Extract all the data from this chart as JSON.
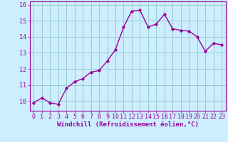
{
  "x": [
    0,
    1,
    2,
    3,
    4,
    5,
    6,
    7,
    8,
    9,
    10,
    11,
    12,
    13,
    14,
    15,
    16,
    17,
    18,
    19,
    20,
    21,
    22,
    23
  ],
  "y": [
    9.9,
    10.2,
    9.9,
    9.8,
    10.8,
    11.2,
    11.4,
    11.8,
    11.9,
    12.5,
    13.2,
    14.6,
    15.6,
    15.65,
    14.6,
    14.8,
    15.4,
    14.5,
    14.4,
    14.35,
    14.0,
    13.1,
    13.6,
    13.5
  ],
  "line_color": "#990099",
  "marker": "o",
  "markersize": 2.5,
  "linewidth": 1.0,
  "bg_color": "#cceeff",
  "grid_color": "#99cccc",
  "xlabel": "Windchill (Refroidissement éolien,°C)",
  "xlabel_color": "#990099",
  "tick_color": "#990099",
  "xlim": [
    -0.5,
    23.5
  ],
  "ylim": [
    9.4,
    16.2
  ],
  "yticks": [
    10,
    11,
    12,
    13,
    14,
    15,
    16
  ],
  "xticks": [
    0,
    1,
    2,
    3,
    4,
    5,
    6,
    7,
    8,
    9,
    10,
    11,
    12,
    13,
    14,
    15,
    16,
    17,
    18,
    19,
    20,
    21,
    22,
    23
  ],
  "tick_fontsize": 6.0,
  "xlabel_fontsize": 6.5,
  "xlabel_fontweight": "bold"
}
